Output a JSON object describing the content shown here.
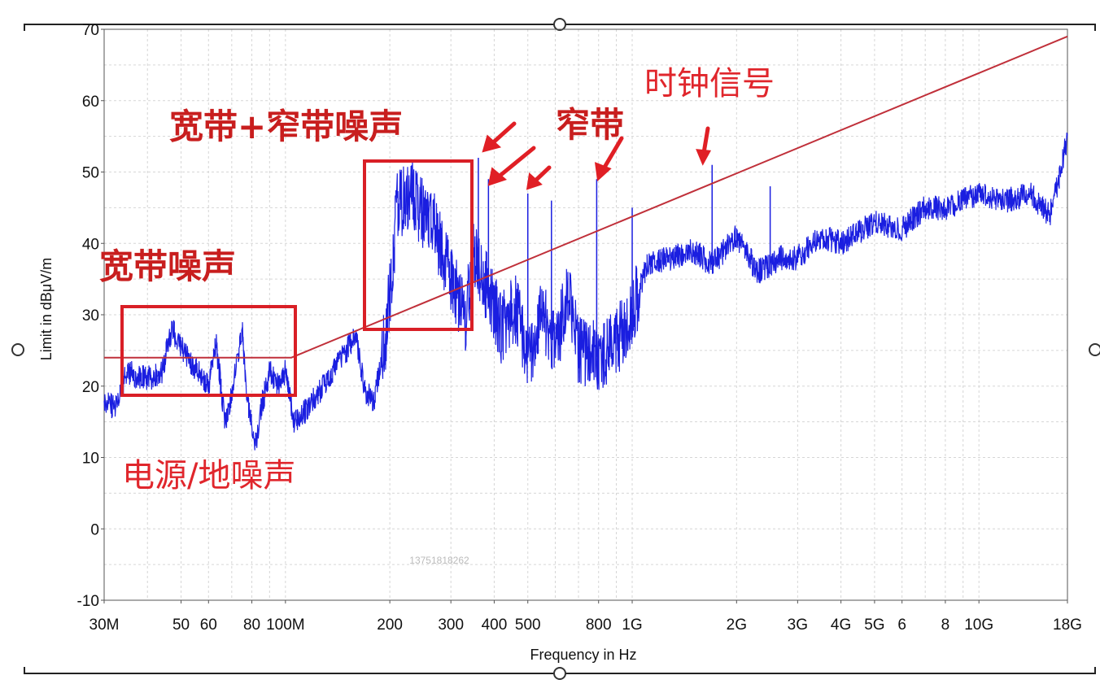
{
  "chart_data": {
    "type": "line",
    "xlabel": "Frequency in Hz",
    "ylabel": "Limit in dBμV/m",
    "x_scale": "log",
    "xlim": [
      30000000,
      18000000000
    ],
    "ylim": [
      -10,
      70
    ],
    "y_ticks": [
      -10,
      0,
      10,
      20,
      30,
      40,
      50,
      60,
      70
    ],
    "x_ticks": [
      {
        "value": 30000000,
        "label": "30M"
      },
      {
        "value": 50000000,
        "label": "50"
      },
      {
        "value": 60000000,
        "label": "60"
      },
      {
        "value": 80000000,
        "label": "80"
      },
      {
        "value": 100000000,
        "label": "100M"
      },
      {
        "value": 200000000,
        "label": "200"
      },
      {
        "value": 300000000,
        "label": "300"
      },
      {
        "value": 400000000,
        "label": "400"
      },
      {
        "value": 500000000,
        "label": "500"
      },
      {
        "value": 800000000,
        "label": "800"
      },
      {
        "value": 1000000000,
        "label": "1G"
      },
      {
        "value": 2000000000,
        "label": "2G"
      },
      {
        "value": 3000000000,
        "label": "3G"
      },
      {
        "value": 4000000000,
        "label": "4G"
      },
      {
        "value": 5000000000,
        "label": "5G"
      },
      {
        "value": 6000000000,
        "label": "6"
      },
      {
        "value": 8000000000,
        "label": "8"
      },
      {
        "value": 10000000000,
        "label": "10G"
      },
      {
        "value": 18000000000,
        "label": "18G"
      }
    ],
    "grid": true,
    "series": [
      {
        "color": "#c0303a",
        "x": [
          30000000,
          104000000,
          18000000000
        ],
        "y": [
          24,
          24,
          69
        ]
      },
      {
        "color": "#1a1ee0",
        "x": [
          30000000,
          32000000,
          35000000,
          40000000,
          44000000,
          47000000,
          52000000,
          56000000,
          60000000,
          63000000,
          67000000,
          70000000,
          75000000,
          78000000,
          82000000,
          86000000,
          90000000,
          95000000,
          100000000,
          106000000,
          112000000,
          125000000,
          140000000,
          150000000,
          160000000,
          170000000,
          180000000,
          195000000,
          210000000,
          230000000,
          250000000,
          270000000,
          290000000,
          310000000,
          330000000,
          350000000,
          380000000,
          420000000,
          460000000,
          500000000,
          550000000,
          600000000,
          650000000,
          700000000,
          800000000,
          900000000,
          1000000000,
          1100000000,
          1300000000,
          1500000000,
          1700000000,
          2000000000,
          2300000000,
          2700000000,
          3000000000,
          3500000000,
          4000000000,
          5000000000,
          6000000000,
          7000000000,
          8000000000,
          10000000000,
          12000000000,
          14000000000,
          16000000000,
          17000000000,
          18000000000
        ],
        "y": [
          18,
          17,
          22,
          21,
          22,
          28,
          24,
          22,
          20,
          26,
          15,
          19,
          28,
          17,
          12,
          18,
          22,
          20,
          22,
          15,
          16,
          19,
          23,
          25,
          27,
          19,
          18,
          27,
          45,
          47,
          44,
          42,
          37,
          33,
          29,
          39,
          34,
          28,
          31,
          24,
          30,
          25,
          33,
          25,
          24,
          26,
          30,
          37,
          38,
          39,
          37,
          41,
          36,
          38,
          38,
          41,
          40,
          43,
          42,
          45,
          45,
          47,
          46,
          47,
          44,
          49,
          55
        ]
      }
    ],
    "spikes": [
      {
        "x": 360000000,
        "y": 52
      },
      {
        "x": 385000000,
        "y": 49
      },
      {
        "x": 500000000,
        "y": 47
      },
      {
        "x": 585000000,
        "y": 46
      },
      {
        "x": 790000000,
        "y": 49
      },
      {
        "x": 1000000000,
        "y": 45
      },
      {
        "x": 1700000000,
        "y": 51
      },
      {
        "x": 2500000000,
        "y": 48
      }
    ],
    "annotations": [
      {
        "text": "宽带+窄带噪声"
      },
      {
        "text": "窄带"
      },
      {
        "text": "时钟信号"
      },
      {
        "text": "宽带噪声"
      },
      {
        "text": "电源/地噪声"
      }
    ],
    "watermark": "13751818262"
  }
}
